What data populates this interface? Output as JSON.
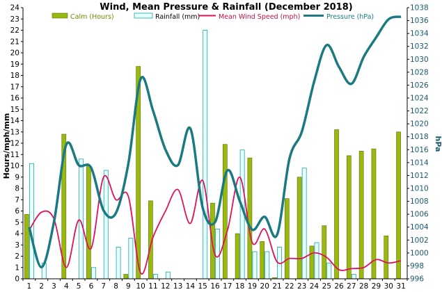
{
  "chart_data": {
    "type": "bar",
    "title": "Wind, Mean Pressure & Rainfall (December 2018)",
    "ylabel": "Hours/mph/mm",
    "y2label": "hPa",
    "categories": [
      "1",
      "2",
      "3",
      "4",
      "5",
      "6",
      "7",
      "8",
      "9",
      "10",
      "11",
      "12",
      "13",
      "14",
      "15",
      "16",
      "17",
      "18",
      "19",
      "20",
      "21",
      "22",
      "23",
      "24",
      "25",
      "26",
      "27",
      "28",
      "29",
      "30",
      "31"
    ],
    "ylim": [
      0,
      24
    ],
    "y2lim": [
      996,
      1038
    ],
    "yticks": [
      0,
      1,
      2,
      3,
      4,
      5,
      6,
      7,
      8,
      9,
      10,
      11,
      12,
      13,
      14,
      15,
      16,
      17,
      18,
      19,
      20,
      21,
      22,
      23,
      24
    ],
    "y2ticks": [
      996,
      998,
      1000,
      1002,
      1004,
      1006,
      1008,
      1010,
      1012,
      1014,
      1016,
      1018,
      1020,
      1022,
      1024,
      1026,
      1028,
      1030,
      1032,
      1034,
      1036,
      1038
    ],
    "grid": false,
    "legend_position": "top",
    "series": [
      {
        "name": "Calm (Hours)",
        "kind": "bar",
        "axis": "left",
        "color": "#99b810",
        "values": [
          5.7,
          0,
          0,
          12.8,
          0,
          10.0,
          0,
          0,
          0.4,
          18.8,
          6.9,
          0,
          0,
          0,
          0,
          6.7,
          11.9,
          4.0,
          10.7,
          3.3,
          0.1,
          7.1,
          9.0,
          2.9,
          4.7,
          13.2,
          10.9,
          11.3,
          11.5,
          3.8,
          13.0
        ]
      },
      {
        "name": "Rainfall (mm)",
        "kind": "bar",
        "axis": "left",
        "color": "#e8ffff",
        "values": [
          10.2,
          1.4,
          0,
          0,
          10.6,
          1.0,
          9.6,
          2.8,
          3.6,
          0,
          0.4,
          0.6,
          0,
          0,
          22.0,
          4.4,
          0,
          11.4,
          2.4,
          2.4,
          2.8,
          0,
          9.8,
          3.2,
          1.4,
          0,
          0.4,
          0,
          0,
          0,
          0
        ]
      },
      {
        "name": "Mean Wind Speed (mph)",
        "kind": "line",
        "axis": "left",
        "color": "#e0105a",
        "values": [
          4.3,
          5.9,
          5.3,
          1.0,
          5.2,
          2.7,
          9.0,
          7.0,
          7.3,
          0.5,
          3.7,
          6.0,
          7.9,
          4.9,
          8.7,
          2.1,
          4.3,
          9.0,
          3.2,
          4.4,
          1.5,
          1.8,
          1.8,
          2.3,
          1.9,
          0.8,
          0.9,
          1.0,
          1.7,
          1.4,
          1.6
        ]
      },
      {
        "name": "Pressure (hPa)",
        "kind": "line",
        "axis": "right",
        "color": "#1a7a80",
        "values": [
          1004,
          997.8,
          1004.8,
          1016.8,
          1013.6,
          1013.2,
          1006.6,
          1006.2,
          1013.8,
          1027,
          1022,
          1016,
          1013.6,
          1019.3,
          1007,
          1004.8,
          1012.8,
          1008,
          1003.6,
          1005.6,
          1002.8,
          1014.6,
          1018.8,
          1026.6,
          1032.2,
          1028.8,
          1026.2,
          1030.4,
          1033.4,
          1036.2,
          1036.6
        ]
      }
    ]
  }
}
